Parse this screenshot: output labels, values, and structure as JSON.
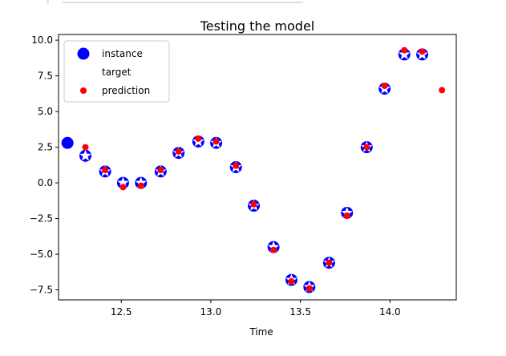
{
  "chart_data": {
    "type": "scatter",
    "title": "Testing the model",
    "xlabel": "Time",
    "ylabel": "",
    "xlim": [
      12.15,
      14.37
    ],
    "ylim": [
      -8.2,
      10.4
    ],
    "xticks": [
      12.5,
      13.0,
      13.5,
      14.0
    ],
    "xtick_labels": [
      "12.5",
      "13.0",
      "13.5",
      "14.0"
    ],
    "yticks": [
      -7.5,
      -5.0,
      -2.5,
      0.0,
      2.5,
      5.0,
      7.5,
      10.0
    ],
    "ytick_labels": [
      "−7.5",
      "−5.0",
      "−2.5",
      "0.0",
      "2.5",
      "5.0",
      "7.5",
      "10.0"
    ],
    "grid": false,
    "legend_position": "top-left",
    "series": [
      {
        "name": "instance",
        "marker": "large-circle",
        "color": "#0000ff",
        "x": [
          12.2,
          12.3,
          12.41,
          12.51,
          12.61,
          12.72,
          12.82,
          12.93,
          13.03,
          13.14,
          13.24,
          13.35,
          13.45,
          13.55,
          13.66,
          13.76,
          13.87,
          13.97,
          14.08,
          14.18
        ],
        "y": [
          2.8,
          1.9,
          0.8,
          0.0,
          0.0,
          0.8,
          2.1,
          2.9,
          2.8,
          1.1,
          -1.6,
          -4.5,
          -6.8,
          -7.3,
          -5.6,
          -2.1,
          2.5,
          6.6,
          9.0,
          9.0
        ]
      },
      {
        "name": "target",
        "marker": "white-star",
        "color": "#ffffff",
        "x": [
          12.3,
          12.41,
          12.51,
          12.61,
          12.72,
          12.82,
          12.93,
          13.03,
          13.14,
          13.24,
          13.35,
          13.45,
          13.55,
          13.66,
          13.76,
          13.87,
          13.97,
          14.08,
          14.18
        ],
        "y": [
          1.9,
          0.8,
          0.0,
          0.0,
          0.8,
          2.1,
          2.9,
          2.8,
          1.1,
          -1.6,
          -4.5,
          -6.8,
          -7.3,
          -5.6,
          -2.1,
          2.5,
          6.6,
          9.0,
          9.0
        ]
      },
      {
        "name": "prediction",
        "marker": "small-dot",
        "color": "#ff0000",
        "x": [
          12.3,
          12.41,
          12.51,
          12.61,
          12.72,
          12.82,
          12.93,
          13.03,
          13.14,
          13.24,
          13.35,
          13.45,
          13.55,
          13.66,
          13.76,
          13.87,
          13.97,
          14.08,
          14.18,
          14.29
        ],
        "y": [
          2.5,
          0.9,
          -0.3,
          -0.2,
          0.9,
          2.2,
          3.1,
          2.9,
          1.2,
          -1.5,
          -4.7,
          -6.9,
          -7.4,
          -5.6,
          -2.3,
          2.5,
          6.8,
          9.3,
          9.2,
          6.5
        ]
      }
    ]
  }
}
